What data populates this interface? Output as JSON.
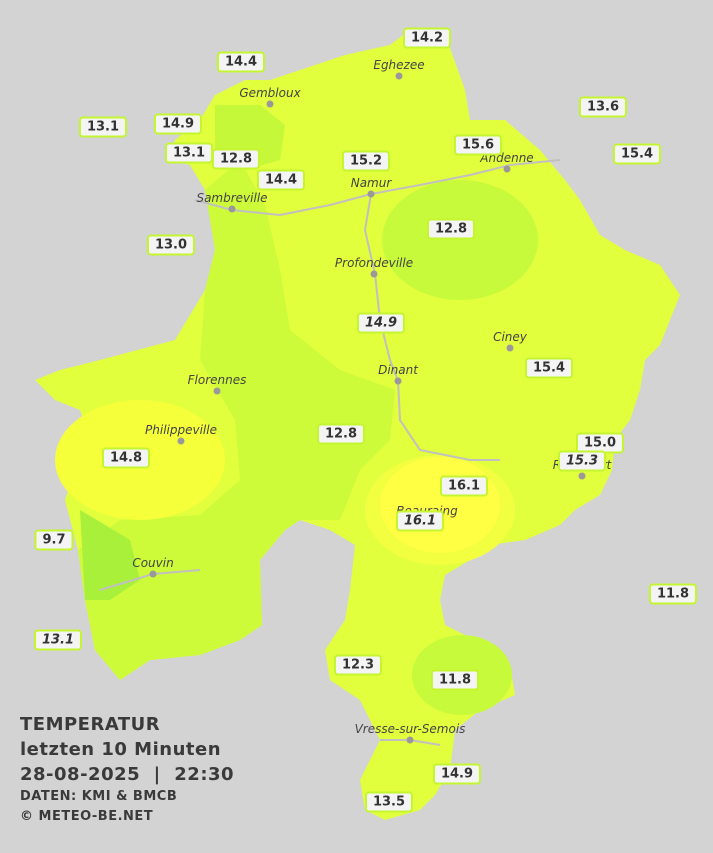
{
  "title": {
    "heading": "TEMPERATUR",
    "period": "letzten 10 Minuten",
    "datetime": "28-08-2025  |  22:30",
    "source": "DATEN: KMI & BMCB",
    "copyright": "© METEO-BE.NET"
  },
  "cities": [
    "Eghezee",
    "Gembloux",
    "Andenne",
    "Namur",
    "Sambreville",
    "Profondeville",
    "Ciney",
    "Dinant",
    "Florennes",
    "Philippeville",
    "Rochefort",
    "Beauraing",
    "Couvin",
    "Vresse-sur-Semois"
  ],
  "stations": [
    {
      "label": "14.2"
    },
    {
      "label": "14.4"
    },
    {
      "label": "13.1"
    },
    {
      "label": "14.9"
    },
    {
      "label": "13.1"
    },
    {
      "label": "12.8"
    },
    {
      "label": "14.4"
    },
    {
      "label": "15.2"
    },
    {
      "label": "15.6"
    },
    {
      "label": "13.6"
    },
    {
      "label": "15.4"
    },
    {
      "label": "13.0"
    },
    {
      "label": "12.8"
    },
    {
      "label": "14.9",
      "italic": true
    },
    {
      "label": "15.4"
    },
    {
      "label": "12.8"
    },
    {
      "label": "15.0"
    },
    {
      "label": "15.3",
      "italic": true
    },
    {
      "label": "14.8"
    },
    {
      "label": "16.1"
    },
    {
      "label": "16.1",
      "italic": true
    },
    {
      "label": "9.7"
    },
    {
      "label": "11.8"
    },
    {
      "label": "13.1",
      "italic": true
    },
    {
      "label": "12.3"
    },
    {
      "label": "11.8"
    },
    {
      "label": "14.9"
    },
    {
      "label": "13.5"
    }
  ]
}
